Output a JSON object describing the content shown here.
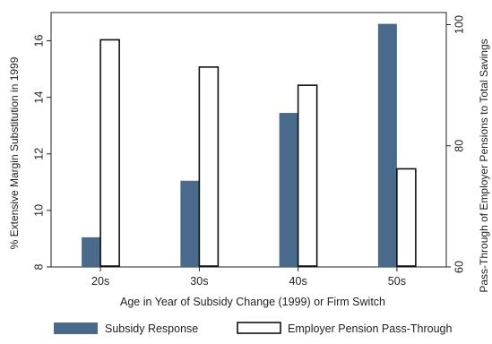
{
  "chart_data": {
    "type": "bar",
    "categories": [
      "20s",
      "30s",
      "40s",
      "50s"
    ],
    "series": [
      {
        "name": "Subsidy Response",
        "axis": "left",
        "color": "#4a6a8c",
        "style": "filled",
        "values": [
          9.05,
          11.05,
          13.45,
          16.6
        ]
      },
      {
        "name": "Employer Pension Pass-Through",
        "axis": "right",
        "color": "#ffffff",
        "style": "outline",
        "values": [
          97.5,
          93.0,
          90.0,
          76.2
        ]
      }
    ],
    "xlabel": "Age in Year of Subsidy Change (1999) or Firm Switch",
    "ylabel_left": "% Extensive Margin Substitution in 1999",
    "ylabel_right": "Pass-Through of Employer Pensions to Total Savings",
    "ylim_left": [
      8,
      17
    ],
    "ylim_right": [
      60,
      102
    ],
    "yticks_left": [
      "8",
      "10",
      "12",
      "14",
      "16"
    ],
    "yticks_right": [
      "60",
      "80",
      "100"
    ],
    "grid": false,
    "legend_position": "bottom"
  }
}
